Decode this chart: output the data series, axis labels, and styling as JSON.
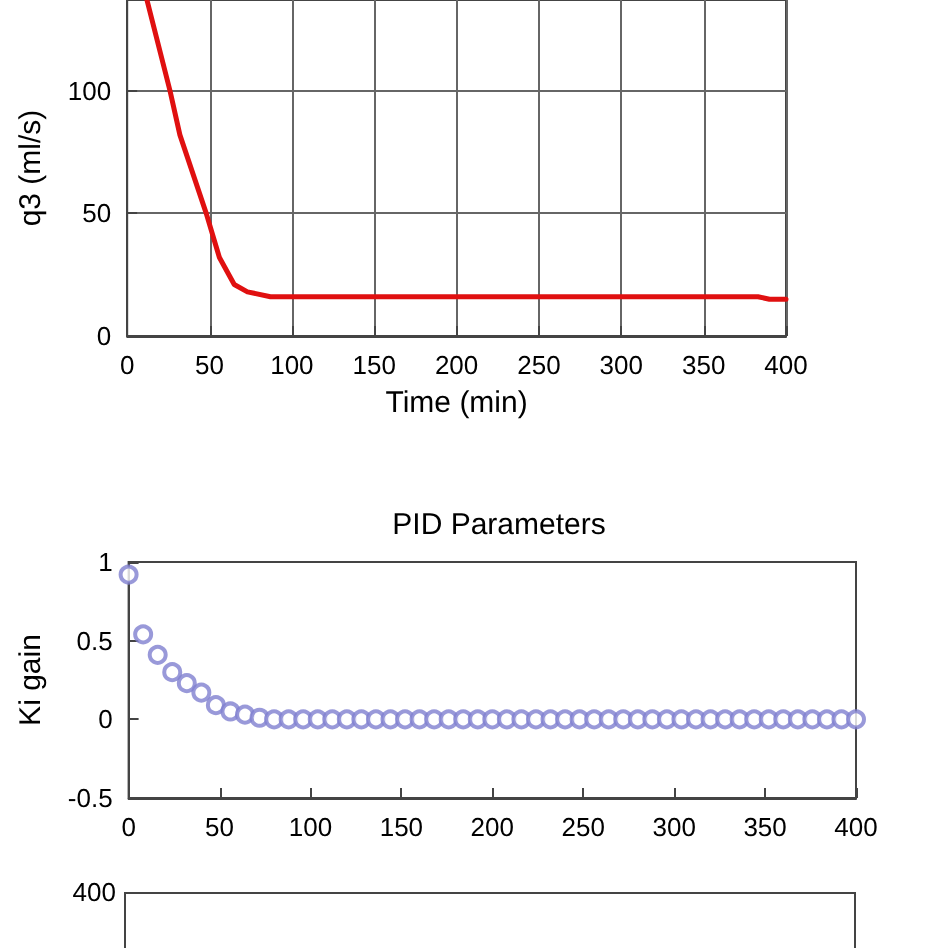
{
  "chart_data": [
    {
      "type": "line",
      "xlabel": "Time (min)",
      "ylabel": "q3 (ml/s)",
      "series": [
        {
          "color": "#e01010",
          "x": [
            12,
            26,
            32,
            48,
            56,
            65,
            73,
            87,
            150,
            250,
            350,
            383,
            390,
            400
          ],
          "values": [
            137,
            100,
            82,
            50,
            32,
            21,
            18,
            16,
            16,
            16,
            16,
            16,
            15,
            15
          ]
        }
      ],
      "xlim": [
        0,
        400
      ],
      "xticks": [
        0,
        50,
        100,
        150,
        200,
        250,
        300,
        350,
        400
      ],
      "ylim": [
        0,
        137
      ],
      "yticks": [
        0,
        50,
        100
      ],
      "grid": true,
      "marker": "none",
      "line_style": "solid"
    },
    {
      "type": "scatter",
      "title": "PID Parameters",
      "ylabel": "Ki gain",
      "series": [
        {
          "color": "#8080d0",
          "x": [
            0,
            8,
            16,
            24,
            32,
            40,
            48,
            56,
            64,
            72,
            80,
            88,
            96,
            104,
            112,
            120,
            128,
            136,
            144,
            152,
            160,
            168,
            176,
            184,
            192,
            200,
            208,
            216,
            224,
            232,
            240,
            248,
            256,
            264,
            272,
            280,
            288,
            296,
            304,
            312,
            320,
            328,
            336,
            344,
            352,
            360,
            368,
            376,
            384,
            392,
            400
          ],
          "values": [
            0.92,
            0.54,
            0.41,
            0.3,
            0.23,
            0.17,
            0.09,
            0.05,
            0.03,
            0.01,
            0,
            0,
            0,
            0,
            0,
            0,
            0,
            0,
            0,
            0,
            0,
            0,
            0,
            0,
            0,
            0,
            0,
            0,
            0,
            0,
            0,
            0,
            0,
            0,
            0,
            0,
            0,
            0,
            0,
            0,
            0,
            0,
            0,
            0,
            0,
            0,
            0,
            0,
            0,
            0,
            0
          ]
        }
      ],
      "xlim": [
        0,
        400
      ],
      "xticks": [
        0,
        50,
        100,
        150,
        200,
        250,
        300,
        350,
        400
      ],
      "ylim": [
        -0.5,
        1
      ],
      "yticks": [
        -0.5,
        0,
        0.5,
        1
      ],
      "grid": false,
      "marker": "circle"
    },
    {
      "type": "other",
      "annotations": [
        "400"
      ]
    }
  ]
}
